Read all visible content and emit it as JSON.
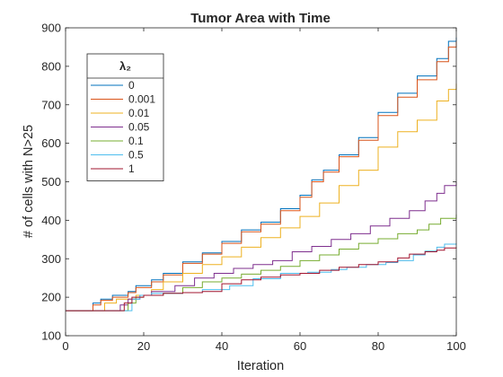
{
  "chart_data": {
    "type": "line",
    "title": "Tumor Area with Time",
    "xlabel": "Iteration",
    "ylabel": "# of cells with N>25",
    "xlim": [
      0,
      100
    ],
    "ylim": [
      100,
      900
    ],
    "xticks": [
      "0",
      "20",
      "40",
      "60",
      "80",
      "100"
    ],
    "yticks": [
      "100",
      "200",
      "300",
      "400",
      "500",
      "600",
      "700",
      "800",
      "900"
    ],
    "grid": false,
    "legend": {
      "title": "λ₂",
      "position": "top-left"
    },
    "series": [
      {
        "name": "0",
        "color": "#0072BD",
        "points": [
          [
            0,
            165
          ],
          [
            6,
            165
          ],
          [
            7,
            185
          ],
          [
            9,
            195
          ],
          [
            12,
            205
          ],
          [
            16,
            215
          ],
          [
            18,
            230
          ],
          [
            22,
            245
          ],
          [
            25,
            262
          ],
          [
            30,
            292
          ],
          [
            35,
            315
          ],
          [
            40,
            345
          ],
          [
            45,
            375
          ],
          [
            50,
            395
          ],
          [
            55,
            430
          ],
          [
            60,
            465
          ],
          [
            63,
            505
          ],
          [
            66,
            530
          ],
          [
            70,
            570
          ],
          [
            75,
            615
          ],
          [
            80,
            680
          ],
          [
            85,
            730
          ],
          [
            90,
            775
          ],
          [
            95,
            820
          ],
          [
            98,
            865
          ],
          [
            100,
            875
          ]
        ]
      },
      {
        "name": "0.001",
        "color": "#D95319",
        "points": [
          [
            0,
            165
          ],
          [
            6,
            165
          ],
          [
            7,
            180
          ],
          [
            9,
            192
          ],
          [
            12,
            200
          ],
          [
            16,
            212
          ],
          [
            18,
            225
          ],
          [
            22,
            240
          ],
          [
            25,
            258
          ],
          [
            30,
            288
          ],
          [
            35,
            312
          ],
          [
            40,
            340
          ],
          [
            45,
            370
          ],
          [
            50,
            390
          ],
          [
            55,
            425
          ],
          [
            60,
            460
          ],
          [
            63,
            500
          ],
          [
            66,
            525
          ],
          [
            70,
            565
          ],
          [
            75,
            608
          ],
          [
            80,
            672
          ],
          [
            85,
            720
          ],
          [
            90,
            765
          ],
          [
            95,
            812
          ],
          [
            98,
            850
          ],
          [
            100,
            865
          ]
        ]
      },
      {
        "name": "0.01",
        "color": "#EDB120",
        "points": [
          [
            0,
            165
          ],
          [
            9,
            165
          ],
          [
            10,
            185
          ],
          [
            13,
            195
          ],
          [
            18,
            205
          ],
          [
            22,
            220
          ],
          [
            25,
            240
          ],
          [
            30,
            262
          ],
          [
            35,
            285
          ],
          [
            40,
            305
          ],
          [
            45,
            330
          ],
          [
            50,
            355
          ],
          [
            55,
            380
          ],
          [
            60,
            410
          ],
          [
            65,
            445
          ],
          [
            70,
            490
          ],
          [
            75,
            530
          ],
          [
            80,
            590
          ],
          [
            85,
            630
          ],
          [
            90,
            660
          ],
          [
            95,
            710
          ],
          [
            98,
            740
          ],
          [
            100,
            755
          ]
        ]
      },
      {
        "name": "0.05",
        "color": "#7E2F8E",
        "points": [
          [
            0,
            165
          ],
          [
            13,
            165
          ],
          [
            14,
            180
          ],
          [
            16,
            195
          ],
          [
            19,
            205
          ],
          [
            22,
            215
          ],
          [
            28,
            230
          ],
          [
            33,
            250
          ],
          [
            38,
            262
          ],
          [
            43,
            275
          ],
          [
            48,
            285
          ],
          [
            53,
            295
          ],
          [
            58,
            318
          ],
          [
            63,
            332
          ],
          [
            68,
            350
          ],
          [
            73,
            365
          ],
          [
            78,
            385
          ],
          [
            83,
            405
          ],
          [
            88,
            425
          ],
          [
            92,
            450
          ],
          [
            95,
            470
          ],
          [
            97,
            490
          ],
          [
            100,
            500
          ]
        ]
      },
      {
        "name": "0.1",
        "color": "#77AC30",
        "points": [
          [
            0,
            165
          ],
          [
            14,
            165
          ],
          [
            16,
            185
          ],
          [
            18,
            200
          ],
          [
            20,
            205
          ],
          [
            25,
            210
          ],
          [
            30,
            225
          ],
          [
            35,
            240
          ],
          [
            40,
            250
          ],
          [
            45,
            260
          ],
          [
            50,
            270
          ],
          [
            55,
            280
          ],
          [
            60,
            295
          ],
          [
            65,
            310
          ],
          [
            70,
            325
          ],
          [
            75,
            340
          ],
          [
            80,
            352
          ],
          [
            85,
            365
          ],
          [
            90,
            375
          ],
          [
            93,
            390
          ],
          [
            96,
            405
          ],
          [
            100,
            415
          ]
        ]
      },
      {
        "name": "0.5",
        "color": "#4DBEEE",
        "points": [
          [
            0,
            165
          ],
          [
            16,
            165
          ],
          [
            17,
            195
          ],
          [
            19,
            205
          ],
          [
            22,
            210
          ],
          [
            30,
            212
          ],
          [
            35,
            220
          ],
          [
            42,
            230
          ],
          [
            48,
            248
          ],
          [
            55,
            262
          ],
          [
            62,
            265
          ],
          [
            68,
            272
          ],
          [
            72,
            278
          ],
          [
            77,
            285
          ],
          [
            82,
            290
          ],
          [
            85,
            295
          ],
          [
            89,
            310
          ],
          [
            92,
            320
          ],
          [
            95,
            330
          ],
          [
            97,
            338
          ],
          [
            100,
            340
          ]
        ]
      },
      {
        "name": "1",
        "color": "#A2142F",
        "points": [
          [
            0,
            165
          ],
          [
            14,
            165
          ],
          [
            15,
            185
          ],
          [
            17,
            200
          ],
          [
            20,
            205
          ],
          [
            25,
            210
          ],
          [
            30,
            212
          ],
          [
            35,
            215
          ],
          [
            40,
            235
          ],
          [
            45,
            245
          ],
          [
            50,
            252
          ],
          [
            55,
            258
          ],
          [
            60,
            262
          ],
          [
            65,
            270
          ],
          [
            70,
            278
          ],
          [
            75,
            285
          ],
          [
            80,
            292
          ],
          [
            85,
            302
          ],
          [
            88,
            312
          ],
          [
            92,
            318
          ],
          [
            95,
            322
          ],
          [
            97,
            328
          ],
          [
            100,
            330
          ]
        ]
      }
    ]
  }
}
